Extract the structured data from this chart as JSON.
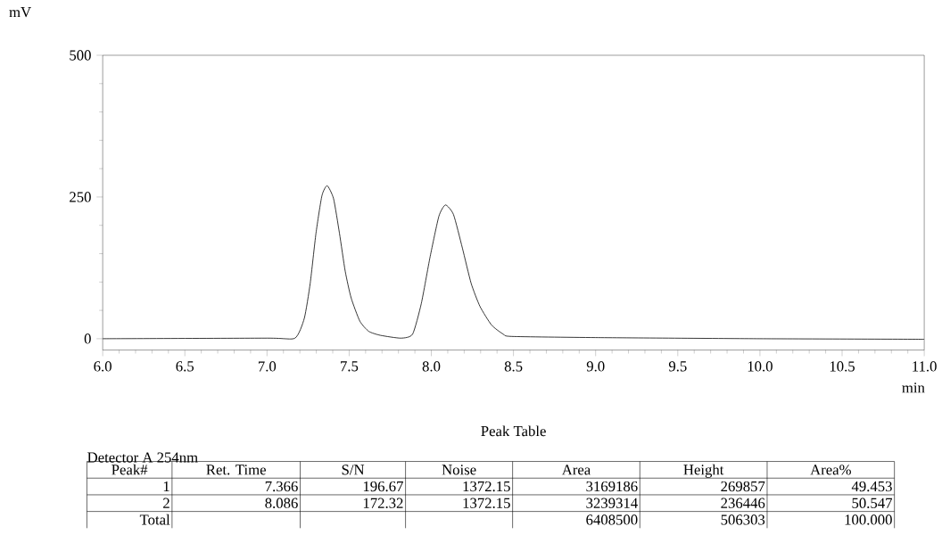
{
  "chart_data": {
    "type": "line",
    "xlabel": "min",
    "ylabel": "mV",
    "x": [
      6.0,
      7.0,
      7.17,
      7.227,
      7.263,
      7.298,
      7.334,
      7.366,
      7.405,
      7.441,
      7.476,
      7.512,
      7.565,
      7.619,
      7.69,
      7.815,
      7.886,
      7.939,
      7.993,
      8.046,
      8.086,
      8.135,
      8.189,
      8.242,
      8.296,
      8.367,
      8.438,
      8.49,
      9.0,
      10.0,
      11.0
    ],
    "series": [
      {
        "color": "#000000",
        "values": [
          0,
          1,
          1,
          36,
          98,
          186,
          252,
          270,
          247,
          186,
          119,
          72,
          31,
          13,
          6,
          1,
          8,
          62,
          145,
          216,
          236,
          219,
          160,
          98,
          57,
          24,
          8,
          4,
          2,
          0,
          -1
        ]
      }
    ],
    "xlim": [
      6.0,
      11.0
    ],
    "ylim": [
      -20,
      500
    ],
    "xticks": [
      {
        "value": 6.0,
        "label": "6.0"
      },
      6.5,
      {
        "value": 7.0,
        "label": "7.0"
      },
      7.5,
      {
        "value": 8.0,
        "label": "8.0"
      },
      8.5,
      {
        "value": 9.0,
        "label": "9.0"
      },
      9.5,
      {
        "value": 10.0,
        "label": "10.0"
      },
      10.5,
      {
        "value": 11.0,
        "label": "11.0"
      }
    ],
    "yticks": [
      0,
      250,
      500
    ],
    "grid": false,
    "marker": "none",
    "line_style": "solid",
    "annotations": [
      "Peak Table",
      "Detector A 254nm",
      "Peak#",
      "Ret. Time",
      "S/N",
      "Noise",
      "Area",
      "Height",
      "Area%",
      "1",
      "7.366",
      "196.67",
      "1372.15",
      "3169186",
      "269857",
      "49.453",
      "2",
      "8.086",
      "172.32",
      "1372.15",
      "3239314",
      "236446",
      "50.547",
      "Total",
      null,
      null,
      null,
      "6408500",
      "506303",
      "100.000"
    ]
  }
}
